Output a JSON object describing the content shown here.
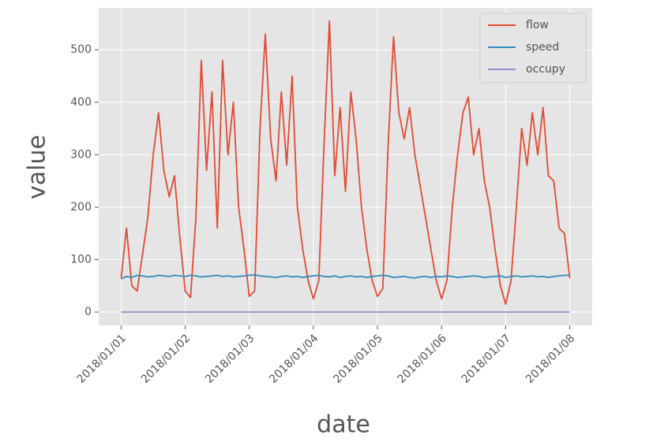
{
  "chart_data": {
    "type": "line",
    "x_label": "date",
    "y_label": "value",
    "x": [
      0,
      2,
      4,
      6,
      8,
      10,
      12,
      14,
      16,
      18,
      20,
      22,
      24,
      26,
      28,
      30,
      32,
      34,
      36,
      38,
      40,
      42,
      44,
      46,
      48,
      50,
      52,
      54,
      56,
      58,
      60,
      62,
      64,
      66,
      68,
      70,
      72,
      74,
      76,
      78,
      80,
      82,
      84,
      86,
      88,
      90,
      92,
      94,
      96,
      98,
      100,
      102,
      104,
      106,
      108,
      110,
      112,
      114,
      116,
      118,
      120,
      122,
      124,
      126,
      128,
      130,
      132,
      134,
      136,
      138,
      140,
      142,
      144,
      146,
      148,
      150,
      152,
      154,
      156,
      158,
      160,
      162,
      164,
      166,
      168
    ],
    "series": [
      {
        "name": "flow",
        "color": "#E24A33",
        "values": [
          65,
          160,
          50,
          40,
          110,
          180,
          300,
          380,
          270,
          220,
          260,
          140,
          40,
          28,
          180,
          480,
          270,
          420,
          160,
          480,
          300,
          400,
          200,
          120,
          30,
          40,
          350,
          530,
          330,
          250,
          420,
          280,
          450,
          200,
          120,
          60,
          25,
          60,
          320,
          555,
          260,
          390,
          230,
          420,
          330,
          200,
          120,
          60,
          30,
          45,
          320,
          525,
          380,
          330,
          390,
          300,
          240,
          180,
          120,
          60,
          25,
          60,
          200,
          300,
          380,
          410,
          300,
          350,
          250,
          200,
          120,
          50,
          15,
          60,
          200,
          350,
          280,
          380,
          300,
          390,
          260,
          250,
          160,
          150,
          65
        ]
      },
      {
        "name": "speed",
        "color": "#348ABD",
        "values": [
          63,
          68,
          66,
          70,
          69,
          67,
          68,
          70,
          69,
          68,
          70,
          69,
          68,
          70,
          69,
          67,
          68,
          69,
          70,
          68,
          69,
          67,
          68,
          69,
          70,
          71,
          69,
          68,
          67,
          66,
          68,
          69,
          67,
          68,
          66,
          68,
          69,
          70,
          68,
          67,
          69,
          66,
          68,
          69,
          67,
          68,
          66,
          68,
          69,
          70,
          69,
          66,
          67,
          68,
          66,
          65,
          67,
          68,
          66,
          68,
          67,
          69,
          68,
          66,
          67,
          68,
          69,
          68,
          66,
          67,
          68,
          69,
          66,
          68,
          69,
          67,
          68,
          69,
          67,
          68,
          66,
          68,
          69,
          70,
          70
        ]
      },
      {
        "name": "occupy",
        "color": "#988ED5",
        "values": [
          0,
          0,
          0,
          0,
          0,
          0,
          0,
          0,
          0,
          0,
          0,
          0,
          0,
          0,
          0,
          0,
          0,
          0,
          0,
          0,
          0,
          0,
          0,
          0,
          0,
          0,
          0,
          0,
          0,
          0,
          0,
          0,
          0,
          0,
          0,
          0,
          0,
          0,
          0,
          0,
          0,
          0,
          0,
          0,
          0,
          0,
          0,
          0,
          0,
          0,
          0,
          0,
          0,
          0,
          0,
          0,
          0,
          0,
          0,
          0,
          0,
          0,
          0,
          0,
          0,
          0,
          0,
          0,
          0,
          0,
          0,
          0,
          0,
          0,
          0,
          0,
          0,
          0,
          0,
          0,
          0,
          0,
          0,
          0,
          0
        ]
      }
    ],
    "xlim": [
      -8.4,
      176.4
    ],
    "xticks": [
      {
        "value": 0,
        "label": "2018/01/01"
      },
      {
        "value": 24,
        "label": "2018/01/02"
      },
      {
        "value": 48,
        "label": "2018/01/03"
      },
      {
        "value": 72,
        "label": "2018/01/04"
      },
      {
        "value": 96,
        "label": "2018/01/05"
      },
      {
        "value": 120,
        "label": "2018/01/06"
      },
      {
        "value": 144,
        "label": "2018/01/07"
      },
      {
        "value": 168,
        "label": "2018/01/08"
      }
    ],
    "ylim": [
      -25.5,
      580
    ],
    "yticks": [
      0,
      100,
      200,
      300,
      400,
      500
    ],
    "grid": true,
    "legend": "upper right"
  }
}
